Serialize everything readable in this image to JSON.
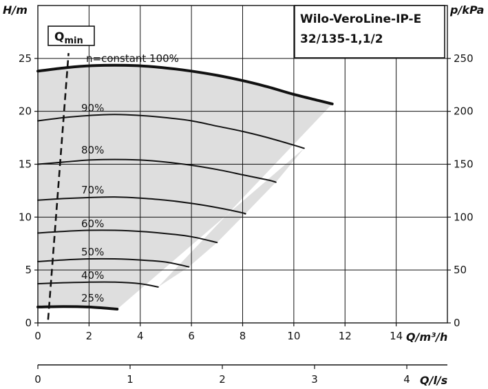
{
  "chart_data": {
    "type": "line",
    "title_lines": [
      "Wilo-VeroLine-IP-E",
      "32/135-1,1/2"
    ],
    "y_left": {
      "label": "H/m",
      "ticks": [
        0,
        5,
        10,
        15,
        20,
        25
      ],
      "range": [
        0,
        30
      ]
    },
    "y_right": {
      "label": "p/kPa",
      "ticks": [
        0,
        50,
        100,
        150,
        200,
        250
      ],
      "range": [
        0,
        300
      ]
    },
    "x_primary": {
      "label": "Q/m³/h",
      "ticks": [
        0,
        2,
        4,
        6,
        8,
        10,
        12,
        14
      ],
      "range": [
        0,
        16
      ]
    },
    "x_secondary": {
      "label": "Q/l/s",
      "ticks": [
        0,
        1,
        2,
        3,
        4
      ],
      "range": [
        0,
        4.44
      ]
    },
    "qmin_label": "Q",
    "qmin_sub": "min",
    "qmin_line": {
      "x": [
        0.4,
        1.2
      ],
      "y": [
        0.3,
        25.5
      ]
    },
    "operating_area": true,
    "series": [
      {
        "name": "n=constant 100%",
        "label": "n=constant 100%",
        "bold": true,
        "x": [
          0,
          1,
          2,
          3,
          4,
          5,
          6,
          7,
          8,
          9,
          10,
          11,
          11.5
        ],
        "y": [
          23.8,
          24.1,
          24.3,
          24.35,
          24.3,
          24.1,
          23.8,
          23.4,
          22.9,
          22.3,
          21.6,
          21.0,
          20.7
        ]
      },
      {
        "name": "90%",
        "label": "90%",
        "x": [
          0,
          1,
          2,
          3,
          4,
          5,
          6,
          7,
          8,
          9,
          10,
          10.4
        ],
        "y": [
          19.1,
          19.4,
          19.6,
          19.7,
          19.6,
          19.4,
          19.1,
          18.6,
          18.1,
          17.5,
          16.8,
          16.5
        ]
      },
      {
        "name": "80%",
        "label": "80%",
        "x": [
          0,
          1,
          2,
          3,
          4,
          5,
          6,
          7,
          8,
          9,
          9.3
        ],
        "y": [
          15.0,
          15.2,
          15.4,
          15.45,
          15.4,
          15.2,
          14.9,
          14.5,
          14.0,
          13.5,
          13.3
        ]
      },
      {
        "name": "70%",
        "label": "70%",
        "x": [
          0,
          1,
          2,
          3,
          4,
          5,
          6,
          7,
          8,
          8.1
        ],
        "y": [
          11.6,
          11.75,
          11.85,
          11.9,
          11.8,
          11.6,
          11.3,
          10.9,
          10.4,
          10.3
        ]
      },
      {
        "name": "60%",
        "label": "60%",
        "x": [
          0,
          1,
          2,
          3,
          4,
          5,
          6,
          7
        ],
        "y": [
          8.5,
          8.65,
          8.75,
          8.75,
          8.65,
          8.45,
          8.15,
          7.6
        ]
      },
      {
        "name": "50%",
        "label": "50%",
        "x": [
          0,
          1,
          2,
          3,
          4,
          5,
          5.9
        ],
        "y": [
          5.8,
          5.95,
          6.05,
          6.05,
          5.95,
          5.75,
          5.3
        ]
      },
      {
        "name": "40%",
        "label": "40%",
        "x": [
          0,
          1,
          2,
          3,
          4,
          4.7
        ],
        "y": [
          3.7,
          3.8,
          3.85,
          3.85,
          3.7,
          3.4
        ]
      },
      {
        "name": "25%",
        "label": "25%",
        "bold": true,
        "x": [
          0,
          1,
          2,
          3.1
        ],
        "y": [
          1.5,
          1.55,
          1.5,
          1.3
        ]
      }
    ]
  }
}
